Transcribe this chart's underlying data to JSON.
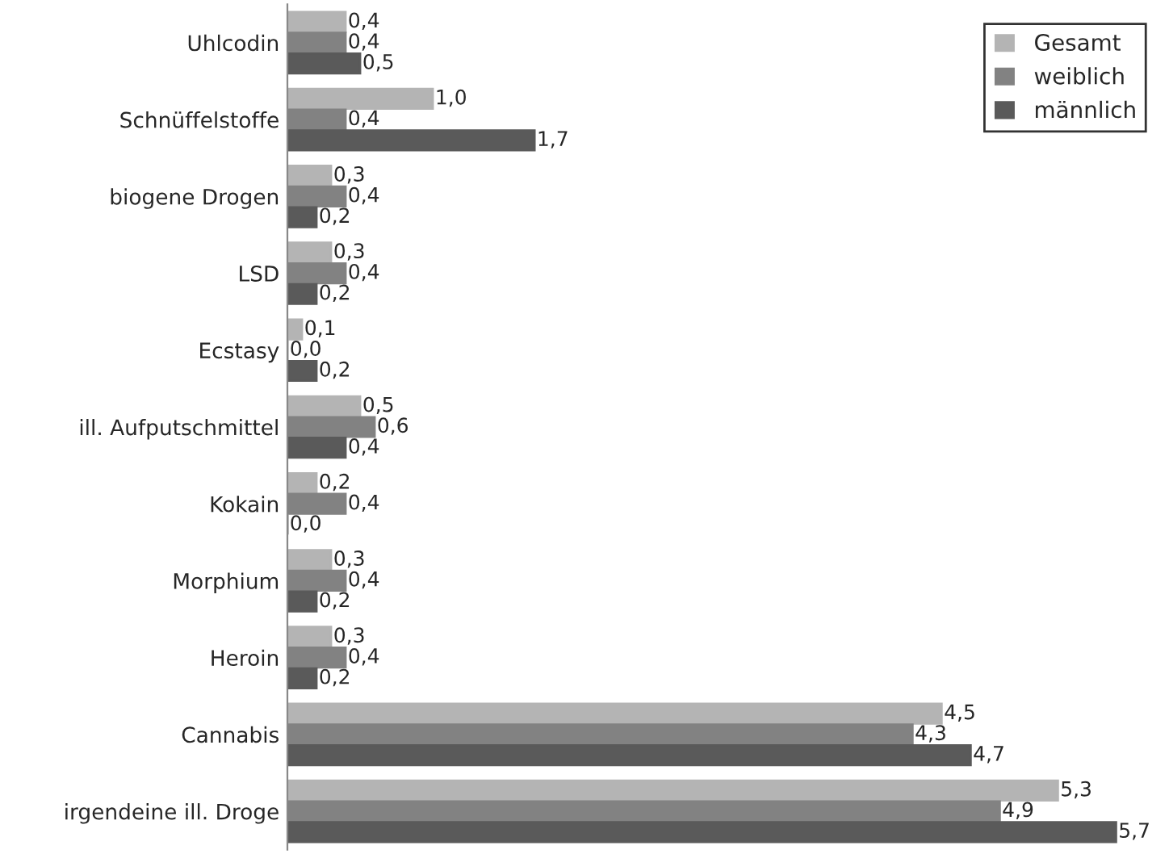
{
  "chart_data": {
    "type": "bar",
    "orientation": "horizontal",
    "categories": [
      "Uhlcodin",
      "Schnüffelstoffe",
      "biogene Drogen",
      "LSD",
      "Ecstasy",
      "ill. Aufputschmittel",
      "Kokain",
      "Morphium",
      "Heroin",
      "Cannabis",
      "irgendeine ill. Droge"
    ],
    "series": [
      {
        "name": "Gesamt",
        "color": "#b4b4b4",
        "values": [
          0.4,
          1.0,
          0.3,
          0.3,
          0.1,
          0.5,
          0.2,
          0.3,
          0.3,
          4.5,
          5.3
        ],
        "value_labels": [
          "0,4",
          "1,0",
          "0,3",
          "0,3",
          "0,1",
          "0,5",
          "0,2",
          "0,3",
          "0,3",
          "4,5",
          "5,3"
        ]
      },
      {
        "name": "weiblich",
        "color": "#828282",
        "values": [
          0.4,
          0.4,
          0.4,
          0.4,
          0.0,
          0.6,
          0.4,
          0.4,
          0.4,
          4.3,
          4.9
        ],
        "value_labels": [
          "0,4",
          "0,4",
          "0,4",
          "0,4",
          "0,0",
          "0,6",
          "0,4",
          "0,4",
          "0,4",
          "4,3",
          "4,9"
        ]
      },
      {
        "name": "männlich",
        "color": "#5a5a5a",
        "values": [
          0.5,
          1.7,
          0.2,
          0.2,
          0.2,
          0.4,
          0.0,
          0.2,
          0.2,
          4.7,
          5.7
        ],
        "value_labels": [
          "0,5",
          "1,7",
          "0,2",
          "0,2",
          "0,2",
          "0,4",
          "0,0",
          "0,2",
          "0,2",
          "4,7",
          "5,7"
        ]
      }
    ],
    "legend": "top right",
    "grid": false
  }
}
